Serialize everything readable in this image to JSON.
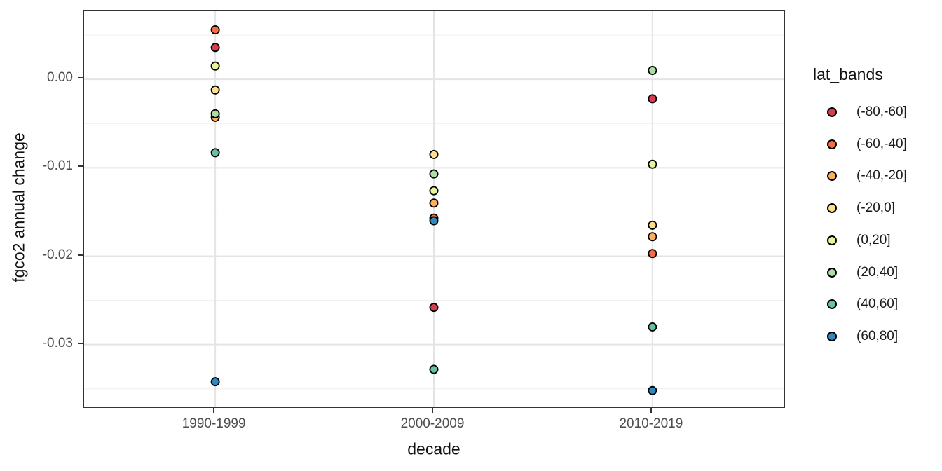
{
  "figure": {
    "x_axis_title": "decade",
    "y_axis_title": "fgco2 annual change",
    "legend_title": "lat_bands"
  },
  "chart_data": {
    "type": "scatter",
    "title": "",
    "xlabel": "decade",
    "ylabel": "fgco2 annual change",
    "legend_position": "right",
    "grid": true,
    "x_categories": [
      "1990-1999",
      "2000-2009",
      "2010-2019"
    ],
    "ylim": [
      -0.037,
      0.0077
    ],
    "y_ticks": [
      {
        "label": "0.00",
        "value": 0.0
      },
      {
        "label": "-0.01",
        "value": -0.01
      },
      {
        "label": "-0.02",
        "value": -0.02
      },
      {
        "label": "-0.03",
        "value": -0.03
      }
    ],
    "y_minor_ticks": [
      0.005,
      -0.005,
      -0.015,
      -0.025,
      -0.035
    ],
    "series": [
      {
        "name": "(-80,-60]",
        "color": "#d53e4f",
        "values": [
          0.0036,
          -0.0258,
          -0.0022
        ]
      },
      {
        "name": "(-60,-40]",
        "color": "#f46d43",
        "values": [
          0.0056,
          -0.0157,
          -0.0197
        ]
      },
      {
        "name": "(-40,-20]",
        "color": "#fdae61",
        "values": [
          -0.0043,
          -0.014,
          -0.0178
        ]
      },
      {
        "name": "(-20,0]",
        "color": "#fee08b",
        "values": [
          -0.0012,
          -0.0085,
          -0.0165
        ]
      },
      {
        "name": "(0,20]",
        "color": "#e6f598",
        "values": [
          0.0015,
          -0.0126,
          -0.0096
        ]
      },
      {
        "name": "(20,40]",
        "color": "#abdda4",
        "values": [
          -0.0039,
          -0.0107,
          0.001
        ]
      },
      {
        "name": "(40,60]",
        "color": "#66c2a5",
        "values": [
          -0.0083,
          -0.0328,
          -0.028
        ]
      },
      {
        "name": "(60,80]",
        "color": "#3288bd",
        "values": [
          -0.0342,
          -0.016,
          -0.0352
        ]
      }
    ],
    "style": {
      "grid_major_color": "#e4e4e4",
      "grid_minor_color": "#f0f0f0",
      "panel_border_color": "#333333",
      "point_outline_color": "#000000"
    }
  }
}
